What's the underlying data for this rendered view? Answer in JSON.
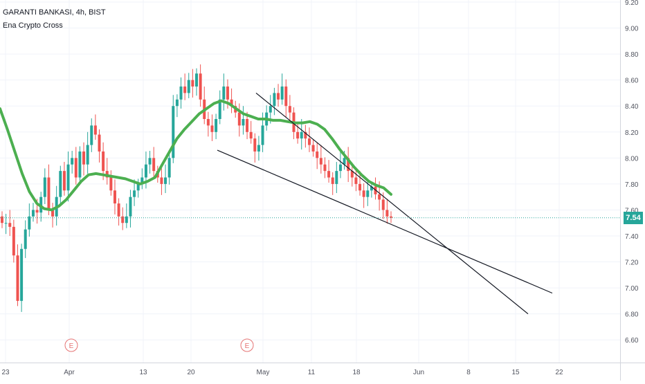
{
  "legend": {
    "title": "GARANTI BANKASI, 4h, BIST",
    "indicator": "Ena Crypto Cross"
  },
  "last_price_label": "7.54",
  "colors": {
    "up": "#26a69a",
    "down": "#ef5350",
    "ma": "#4caf50",
    "trendline": "#131722",
    "price_line": "#26a69a",
    "event": "#e57373",
    "grid": "#f0f3fa",
    "axis_text": "#50535e"
  },
  "events": [
    {
      "label": "E",
      "date": "Apr 1"
    },
    {
      "label": "E",
      "date": "Apr 28"
    }
  ],
  "chart_data": {
    "type": "candlestick",
    "title": "GARANTI BANKASI, 4h, BIST",
    "y_axis_side": "right",
    "ylim": [
      6.5,
      9.2
    ],
    "y_ticks": [
      "9.20",
      "9.00",
      "8.80",
      "8.60",
      "8.40",
      "8.20",
      "8.00",
      "7.80",
      "7.60",
      "7.40",
      "7.20",
      "7.00",
      "6.80",
      "6.60"
    ],
    "x_ticks": [
      "23",
      "Apr",
      "13",
      "20",
      "May",
      "11",
      "18",
      "Jun",
      "8",
      "15",
      "22"
    ],
    "grid": true,
    "last_price": 7.54,
    "close_series": [
      7.5,
      7.5,
      7.47,
      7.25,
      6.9,
      7.3,
      7.45,
      7.55,
      7.6,
      7.58,
      7.7,
      7.85,
      7.6,
      7.55,
      7.7,
      7.9,
      7.75,
      7.95,
      8.0,
      7.85,
      8.05,
      7.95,
      8.1,
      8.25,
      8.18,
      8.05,
      7.9,
      7.85,
      7.75,
      7.65,
      7.55,
      7.5,
      7.55,
      7.7,
      7.75,
      7.8,
      7.85,
      7.95,
      8.0,
      7.9,
      7.85,
      7.8,
      7.85,
      8.0,
      8.4,
      8.45,
      8.55,
      8.5,
      8.6,
      8.55,
      8.65,
      8.45,
      8.3,
      8.25,
      8.2,
      8.3,
      8.45,
      8.55,
      8.45,
      8.4,
      8.35,
      8.25,
      8.3,
      8.2,
      8.15,
      8.05,
      8.1,
      8.25,
      8.35,
      8.4,
      8.5,
      8.45,
      8.55,
      8.4,
      8.35,
      8.2,
      8.15,
      8.2,
      8.15,
      8.1,
      8.05,
      8.0,
      7.95,
      7.9,
      7.85,
      7.8,
      7.9,
      7.95,
      8.0,
      7.9,
      7.85,
      7.8,
      7.75,
      7.7,
      7.75,
      7.78,
      7.72,
      7.68,
      7.6,
      7.55,
      7.54
    ],
    "ma_series": [
      8.38,
      8.22,
      8.05,
      7.88,
      7.74,
      7.65,
      7.61,
      7.6,
      7.63,
      7.68,
      7.75,
      7.82,
      7.87,
      7.88,
      7.87,
      7.86,
      7.85,
      7.84,
      7.82,
      7.8,
      7.82,
      7.85,
      7.95,
      8.05,
      8.15,
      8.22,
      8.28,
      8.34,
      8.38,
      8.42,
      8.44,
      8.42,
      8.38,
      8.34,
      8.32,
      8.3,
      8.3,
      8.29,
      8.29,
      8.28,
      8.27,
      8.27,
      8.28,
      8.26,
      8.22,
      8.15,
      8.07,
      8.0,
      7.93,
      7.87,
      7.82,
      7.79,
      7.77,
      7.72
    ],
    "trendlines": [
      {
        "from": [
          7.53,
          8.5
        ],
        "to": [
          7.53,
          6.8
        ]
      },
      {
        "from": [
          7.52,
          8.06
        ],
        "to": [
          7.52,
          6.96
        ]
      }
    ]
  }
}
